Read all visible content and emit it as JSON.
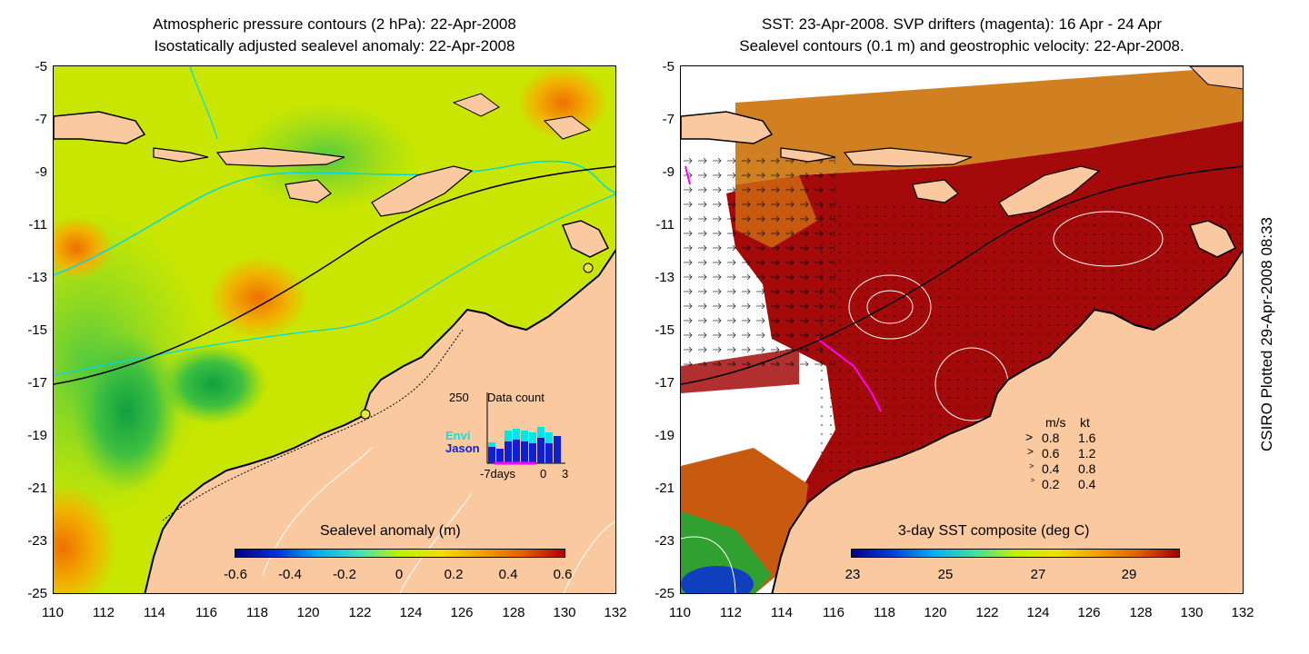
{
  "left_panel": {
    "title_line1": "Atmospheric pressure contours (2 hPa): 22-Apr-2008",
    "title_line2": "Isostatically adjusted sealevel anomaly: 22-Apr-2008",
    "colorbar": {
      "title": "Sealevel anomaly (m)",
      "ticks": [
        "-0.6",
        "-0.4",
        "-0.2",
        "0",
        "0.2",
        "0.4",
        "0.6"
      ]
    },
    "inset": {
      "max_label": "250",
      "title": "Data count",
      "envi_label": "Envi",
      "jason_label": "Jason",
      "x_start_label": "-7days",
      "x_zero_label": "0",
      "x_end_label": "3",
      "envi_color": "#00e5e5",
      "jason_color": "#1020d0"
    }
  },
  "right_panel": {
    "title_line1": "SST: 23-Apr-2008. SVP drifters (magenta): 16 Apr - 24 Apr",
    "title_line2": "Sealevel contours (0.1 m) and geostrophic velocity: 22-Apr-2008.",
    "colorbar": {
      "title": "3-day SST composite (deg C)",
      "ticks": [
        "23",
        "25",
        "27",
        "29"
      ]
    },
    "velocity_legend": {
      "header_ms": "m/s",
      "header_kt": "kt",
      "rows": [
        {
          "ms": "0.8",
          "kt": "1.6"
        },
        {
          "ms": "0.6",
          "kt": "1.2"
        },
        {
          "ms": "0.4",
          "kt": "0.8"
        },
        {
          "ms": "0.2",
          "kt": "0.4"
        }
      ]
    }
  },
  "axes": {
    "y_ticks": [
      "-5",
      "-7",
      "-9",
      "-11",
      "-13",
      "-15",
      "-17",
      "-19",
      "-21",
      "-23",
      "-25"
    ],
    "x_ticks": [
      "110",
      "112",
      "114",
      "116",
      "118",
      "120",
      "122",
      "124",
      "126",
      "128",
      "130",
      "132"
    ]
  },
  "credit": "CSIRO Plotted 29-Apr-2008 08:33",
  "colors": {
    "land": "#fac9a0",
    "sst_warm": "#a50a0a",
    "sla_base": "#c8e600"
  }
}
